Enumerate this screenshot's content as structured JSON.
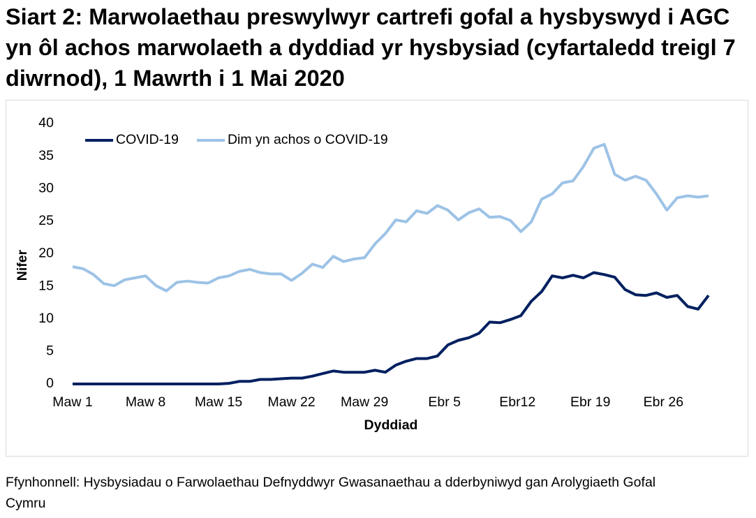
{
  "chart_data": {
    "type": "line",
    "title": "Siart 2: Marwolaethau preswylwyr cartrefi gofal a hysbyswyd i AGC yn ôl achos marwolaeth a dyddiad yr hysbysiad (cyfartaledd treigl 7 diwrnod), 1 Mawrth i 1 Mai 2020",
    "x_label": "Dyddiad",
    "y_label": "Nifer",
    "source": "Ffynhonnell: Hysbysiadau o Farwolaethau Defnyddwyr Gwasanaethau a dderbyniwyd gan Arolygiaeth Gofal Cymru",
    "categories": [
      "Maw 1",
      null,
      null,
      null,
      null,
      null,
      null,
      "Maw 8",
      null,
      null,
      null,
      null,
      null,
      null,
      "Maw 15",
      null,
      null,
      null,
      null,
      null,
      null,
      "Maw 22",
      null,
      null,
      null,
      null,
      null,
      null,
      "Maw 29",
      null,
      null,
      null,
      null,
      null,
      null,
      "Ebr 5",
      null,
      null,
      null,
      null,
      null,
      null,
      "Ebr12",
      null,
      null,
      null,
      null,
      null,
      null,
      "Ebr 19",
      null,
      null,
      null,
      null,
      null,
      null,
      "Ebr 26",
      null,
      null,
      null,
      null,
      null
    ],
    "series": [
      {
        "name": "COVID-19",
        "color": "#002060",
        "values": [
          0,
          0,
          0,
          0,
          0,
          0,
          0,
          0,
          0,
          0,
          0,
          0,
          0,
          0,
          0,
          0.1,
          0.4,
          0.4,
          0.7,
          0.7,
          0.8,
          0.9,
          0.9,
          1.2,
          1.6,
          2.0,
          1.8,
          1.8,
          1.8,
          2.1,
          1.8,
          2.9,
          3.5,
          3.9,
          3.9,
          4.3,
          6.0,
          6.7,
          7.1,
          7.8,
          9.5,
          9.4,
          9.9,
          10.5,
          12.7,
          14.2,
          16.6,
          16.3,
          16.7,
          16.3,
          17.1,
          16.8,
          16.4,
          14.5,
          13.7,
          13.6,
          14.0,
          13.3,
          13.6,
          11.9,
          11.5,
          13.6
        ]
      },
      {
        "name": "Dim yn achos o COVID-19",
        "color": "#9dc3e6",
        "values": [
          18.0,
          17.7,
          16.8,
          15.4,
          15.1,
          16.0,
          16.3,
          16.6,
          15.1,
          14.3,
          15.6,
          15.8,
          15.6,
          15.5,
          16.3,
          16.6,
          17.3,
          17.6,
          17.1,
          16.9,
          16.9,
          15.9,
          17.0,
          18.4,
          17.9,
          19.6,
          18.8,
          19.2,
          19.4,
          21.5,
          23.1,
          25.2,
          24.9,
          26.6,
          26.2,
          27.4,
          26.7,
          25.2,
          26.3,
          26.9,
          25.6,
          25.7,
          25.1,
          23.4,
          24.9,
          28.4,
          29.2,
          30.9,
          31.2,
          33.4,
          36.2,
          36.8,
          32.2,
          31.3,
          31.9,
          31.3,
          29.2,
          26.7,
          28.6,
          28.9,
          28.7,
          28.9
        ]
      }
    ],
    "ylim": [
      0,
      40
    ],
    "yticks": [
      0,
      5,
      10,
      15,
      20,
      25,
      30,
      35,
      40
    ],
    "grid": false,
    "legend": "top-left"
  }
}
